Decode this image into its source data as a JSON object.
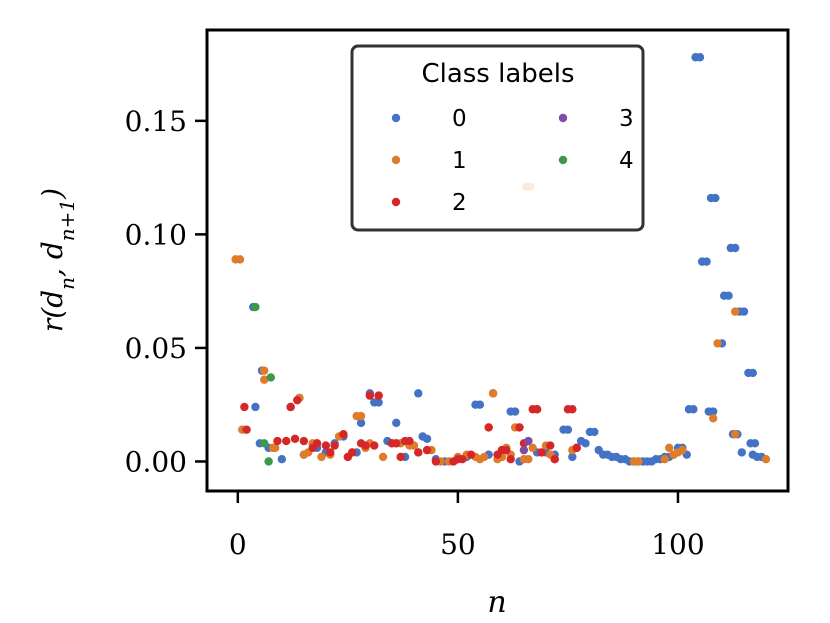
{
  "chart_data": {
    "type": "scatter",
    "xlabel": "n",
    "ylabel": "r(d_n, d_{n+1})",
    "xlim": [
      -7,
      125
    ],
    "ylim": [
      -0.013,
      0.19
    ],
    "x_ticks": [
      0,
      50,
      100
    ],
    "x_tick_labels": [
      "0",
      "50",
      "100"
    ],
    "y_ticks": [
      0.0,
      0.05,
      0.1,
      0.15
    ],
    "y_tick_labels": [
      "0.00",
      "0.05",
      "0.10",
      "0.15"
    ],
    "grid": false,
    "legend": {
      "title": "Class labels",
      "placement": "top-center",
      "columns": 2,
      "entries": [
        "0",
        "1",
        "2",
        "3",
        "4"
      ]
    },
    "series": [
      {
        "name": "0",
        "color": "#4472c4",
        "points": [
          [
            3.5,
            0.068
          ],
          [
            4,
            0.024
          ],
          [
            5,
            0.008
          ],
          [
            5.5,
            0.04
          ],
          [
            7,
            0.006
          ],
          [
            10,
            0.001
          ],
          [
            12,
            0.024
          ],
          [
            14,
            0.028
          ],
          [
            15,
            0.003
          ],
          [
            18,
            0.006
          ],
          [
            20,
            0.004
          ],
          [
            22,
            0.008
          ],
          [
            24,
            0.011
          ],
          [
            27,
            0.004
          ],
          [
            28,
            0.017
          ],
          [
            30,
            0.03
          ],
          [
            31,
            0.026
          ],
          [
            32,
            0.026
          ],
          [
            34,
            0.009
          ],
          [
            35,
            0.008
          ],
          [
            36,
            0.017
          ],
          [
            38,
            0.002
          ],
          [
            40,
            0.007
          ],
          [
            41,
            0.03
          ],
          [
            42,
            0.011
          ],
          [
            43,
            0.01
          ],
          [
            45,
            0.001
          ],
          [
            47,
            0.0
          ],
          [
            50,
            0.001
          ],
          [
            52,
            0.002
          ],
          [
            54,
            0.025
          ],
          [
            55,
            0.025
          ],
          [
            57,
            0.003
          ],
          [
            58,
            0.03
          ],
          [
            60,
            0.002
          ],
          [
            62,
            0.022
          ],
          [
            63,
            0.022
          ],
          [
            64,
            0.0
          ],
          [
            66,
            0.009
          ],
          [
            68,
            0.004
          ],
          [
            70,
            0.004
          ],
          [
            72,
            0.003
          ],
          [
            74,
            0.014
          ],
          [
            75,
            0.014
          ],
          [
            76,
            0.002
          ],
          [
            77,
            0.006
          ],
          [
            78,
            0.009
          ],
          [
            79,
            0.008
          ],
          [
            80,
            0.013
          ],
          [
            81,
            0.013
          ],
          [
            82,
            0.005
          ],
          [
            83,
            0.003
          ],
          [
            84,
            0.003
          ],
          [
            85,
            0.002
          ],
          [
            86,
            0.002
          ],
          [
            87,
            0.001
          ],
          [
            88,
            0.001
          ],
          [
            89,
            0.0
          ],
          [
            90,
            0.0
          ],
          [
            91,
            0.0
          ],
          [
            92,
            0.0
          ],
          [
            93,
            0.0
          ],
          [
            94,
            0.0
          ],
          [
            95,
            0.001
          ],
          [
            96,
            0.001
          ],
          [
            97,
            0.002
          ],
          [
            98,
            0.002
          ],
          [
            99,
            0.003
          ],
          [
            100,
            0.006
          ],
          [
            101,
            0.006
          ],
          [
            102,
            0.003
          ],
          [
            102.5,
            0.023
          ],
          [
            103.5,
            0.023
          ],
          [
            104,
            0.178
          ],
          [
            105,
            0.178
          ],
          [
            105.5,
            0.088
          ],
          [
            106.5,
            0.088
          ],
          [
            107,
            0.022
          ],
          [
            108,
            0.022
          ],
          [
            107.5,
            0.116
          ],
          [
            108.5,
            0.116
          ],
          [
            110,
            0.052
          ],
          [
            110.5,
            0.073
          ],
          [
            111.5,
            0.073
          ],
          [
            112,
            0.094
          ],
          [
            113,
            0.094
          ],
          [
            112.5,
            0.012
          ],
          [
            113.5,
            0.012
          ],
          [
            114,
            0.066
          ],
          [
            115,
            0.066
          ],
          [
            114.5,
            0.004
          ],
          [
            116,
            0.039
          ],
          [
            117,
            0.039
          ],
          [
            116.5,
            0.008
          ],
          [
            117.5,
            0.008
          ],
          [
            117,
            0.003
          ],
          [
            118,
            0.002
          ],
          [
            119,
            0.002
          ]
        ]
      },
      {
        "name": "1",
        "color": "#e07b2a",
        "points": [
          [
            -0.5,
            0.089
          ],
          [
            0.5,
            0.089
          ],
          [
            1,
            0.014
          ],
          [
            6,
            0.04
          ],
          [
            6,
            0.036
          ],
          [
            8,
            0.006
          ],
          [
            8.5,
            0.006
          ],
          [
            14,
            0.028
          ],
          [
            15,
            0.003
          ],
          [
            16,
            0.004
          ],
          [
            17,
            0.008
          ],
          [
            18,
            0.008
          ],
          [
            19,
            0.002
          ],
          [
            21,
            0.003
          ],
          [
            23,
            0.011
          ],
          [
            25,
            0.002
          ],
          [
            26,
            0.004
          ],
          [
            27,
            0.02
          ],
          [
            28,
            0.02
          ],
          [
            29,
            0.006
          ],
          [
            30,
            0.008
          ],
          [
            32,
            0.029
          ],
          [
            33,
            0.002
          ],
          [
            36,
            0.008
          ],
          [
            37,
            0.008
          ],
          [
            39,
            0.007
          ],
          [
            40,
            0.007
          ],
          [
            41,
            0.004
          ],
          [
            44,
            0.005
          ],
          [
            46,
            0.0
          ],
          [
            48,
            0.0
          ],
          [
            50,
            0.002
          ],
          [
            52,
            0.003
          ],
          [
            54,
            0.002
          ],
          [
            55,
            0.001
          ],
          [
            56,
            0.002
          ],
          [
            57,
            0.015
          ],
          [
            58,
            0.03
          ],
          [
            59,
            0.001
          ],
          [
            60,
            0.002
          ],
          [
            61,
            0.006
          ],
          [
            62,
            0.003
          ],
          [
            63,
            0.015
          ],
          [
            64,
            0.015
          ],
          [
            65,
            0.001
          ],
          [
            66,
            0.001
          ],
          [
            65.5,
            0.121
          ],
          [
            66.5,
            0.121
          ],
          [
            67,
            0.006
          ],
          [
            68,
            0.023
          ],
          [
            69,
            0.004
          ],
          [
            70,
            0.007
          ],
          [
            71,
            0.003
          ],
          [
            72,
            0.001
          ],
          [
            76,
            0.005
          ],
          [
            90,
            0.0
          ],
          [
            91,
            0.0
          ],
          [
            97,
            0.001
          ],
          [
            98,
            0.006
          ],
          [
            99,
            0.003
          ],
          [
            100,
            0.004
          ],
          [
            101,
            0.005
          ],
          [
            108,
            0.019
          ],
          [
            109,
            0.052
          ],
          [
            113,
            0.066
          ],
          [
            113,
            0.012
          ],
          [
            120,
            0.001
          ]
        ]
      },
      {
        "name": "2",
        "color": "#d62728",
        "points": [
          [
            1.5,
            0.024
          ],
          [
            2,
            0.014
          ],
          [
            9,
            0.009
          ],
          [
            11,
            0.009
          ],
          [
            12,
            0.024
          ],
          [
            13,
            0.01
          ],
          [
            13.5,
            0.027
          ],
          [
            15,
            0.009
          ],
          [
            17,
            0.006
          ],
          [
            18,
            0.008
          ],
          [
            20,
            0.007
          ],
          [
            21,
            0.004
          ],
          [
            22,
            0.007
          ],
          [
            24,
            0.012
          ],
          [
            25,
            0.002
          ],
          [
            26,
            0.004
          ],
          [
            28,
            0.008
          ],
          [
            29,
            0.007
          ],
          [
            30,
            0.029
          ],
          [
            31,
            0.007
          ],
          [
            32,
            0.029
          ],
          [
            35,
            0.008
          ],
          [
            36,
            0.008
          ],
          [
            37,
            0.002
          ],
          [
            38,
            0.009
          ],
          [
            39,
            0.009
          ],
          [
            41,
            0.004
          ],
          [
            43,
            0.005
          ],
          [
            45,
            0.0
          ],
          [
            49,
            0.0
          ],
          [
            50,
            0.001
          ],
          [
            51,
            0.001
          ],
          [
            53,
            0.003
          ],
          [
            57,
            0.015
          ],
          [
            59,
            0.003
          ],
          [
            60,
            0.005
          ],
          [
            61,
            0.005
          ],
          [
            62,
            0.001
          ],
          [
            64,
            0.015
          ],
          [
            65,
            0.008
          ],
          [
            67,
            0.023
          ],
          [
            68,
            0.023
          ],
          [
            69,
            0.004
          ],
          [
            71,
            0.007
          ],
          [
            72,
            0.001
          ],
          [
            75,
            0.023
          ],
          [
            76,
            0.023
          ],
          [
            77,
            0.006
          ]
        ]
      },
      {
        "name": "3",
        "color": "#7b4fa6",
        "points": [
          [
            65,
            0.005
          ],
          [
            66,
            0.009
          ]
        ]
      },
      {
        "name": "4",
        "color": "#3a9a4a",
        "points": [
          [
            4,
            0.068
          ],
          [
            6,
            0.008
          ],
          [
            7,
            0.0
          ],
          [
            7.5,
            0.037
          ]
        ]
      }
    ]
  }
}
